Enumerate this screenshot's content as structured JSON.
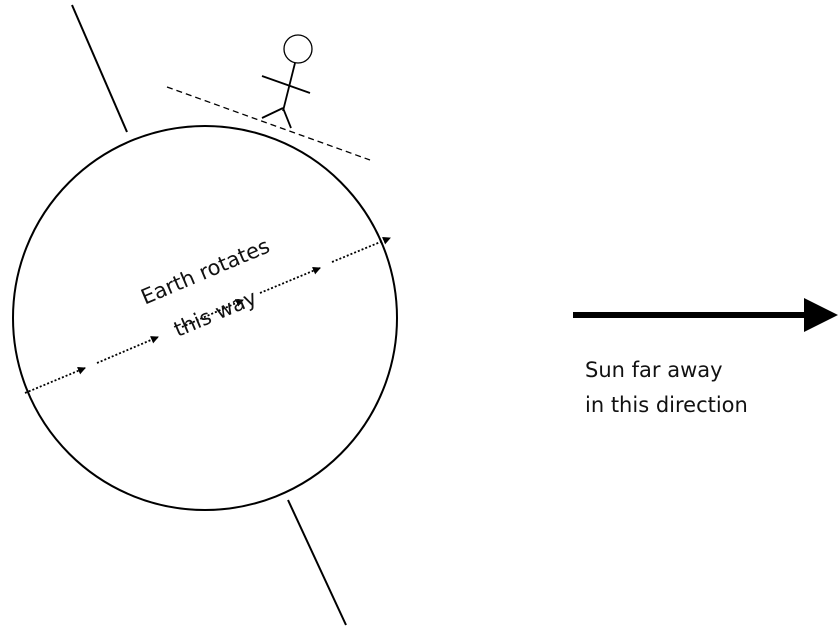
{
  "labels": {
    "rotation_line1": "Earth rotates",
    "rotation_line2": "this way",
    "sun_line1": "Sun far away",
    "sun_line2": "in this direction"
  }
}
